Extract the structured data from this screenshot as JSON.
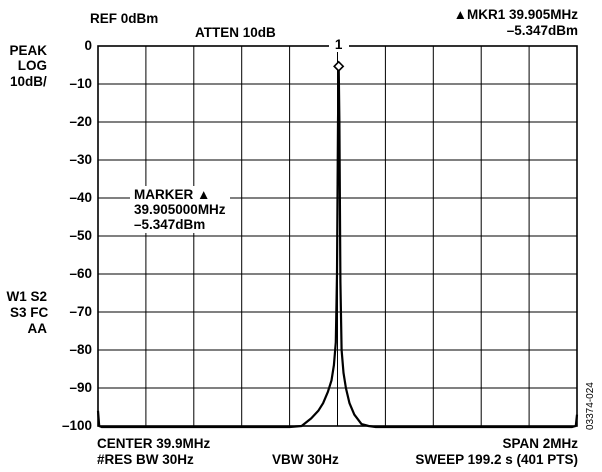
{
  "header": {
    "ref": "REF 0dBm",
    "atten": "ATTEN 10dB",
    "mkr_line1": "▲MKR1 39.905MHz",
    "mkr_line2": "–5.347dBm"
  },
  "left_labels": {
    "peak": "PEAK",
    "log": "LOG",
    "scale": "10dB/",
    "w1s2": "W1 S2",
    "s3fc": "S3 FC",
    "aa": "AA"
  },
  "marker_box": {
    "line1": "MARKER ▲",
    "line2": "39.905000MHz",
    "line3": "–5.347dBm"
  },
  "marker_number": "1",
  "footer": {
    "center": "CENTER 39.9MHz",
    "res_bw": "#RES BW 30Hz",
    "vbw": "VBW 30Hz",
    "span": "SPAN 2MHz",
    "sweep": "SWEEP 199.2 s (401 PTS)"
  },
  "figure_id": "03374-024",
  "chart_data": {
    "type": "line",
    "title": "",
    "xlabel": "",
    "ylabel": "",
    "xlim": [
      38.9,
      40.9
    ],
    "ylim": [
      -100,
      0
    ],
    "grid": true,
    "y_tick_labels": [
      "0",
      "–10",
      "–20",
      "–30",
      "–40",
      "–50",
      "–60",
      "–70",
      "–80",
      "–90",
      "–100"
    ],
    "y_ticks": [
      0,
      -10,
      -20,
      -30,
      -40,
      -50,
      -60,
      -70,
      -80,
      -90,
      -100
    ],
    "marker": {
      "x": 39.905,
      "y": -5.347
    },
    "series": [
      {
        "x": [
          38.9,
          38.905,
          38.915,
          39.0,
          39.2,
          39.4,
          39.6,
          39.7,
          39.75,
          39.79,
          39.82,
          39.84,
          39.86,
          39.875,
          39.885,
          39.893,
          39.898,
          39.902,
          39.905,
          39.908,
          39.912,
          39.917,
          39.925,
          39.935,
          39.95,
          39.97,
          40.0,
          40.03,
          40.06,
          40.1,
          40.3,
          40.6,
          40.88,
          40.895,
          40.9
        ],
        "y": [
          -96,
          -100,
          -100.5,
          -100.5,
          -100.5,
          -100.5,
          -100.5,
          -100.3,
          -100,
          -98,
          -96,
          -94,
          -91,
          -88,
          -84,
          -78,
          -60,
          -20,
          -5.347,
          -20,
          -62,
          -80,
          -86,
          -90,
          -94,
          -97,
          -99.5,
          -100,
          -100.5,
          -100.5,
          -100.5,
          -100.5,
          -100.5,
          -100,
          -97
        ]
      }
    ]
  }
}
